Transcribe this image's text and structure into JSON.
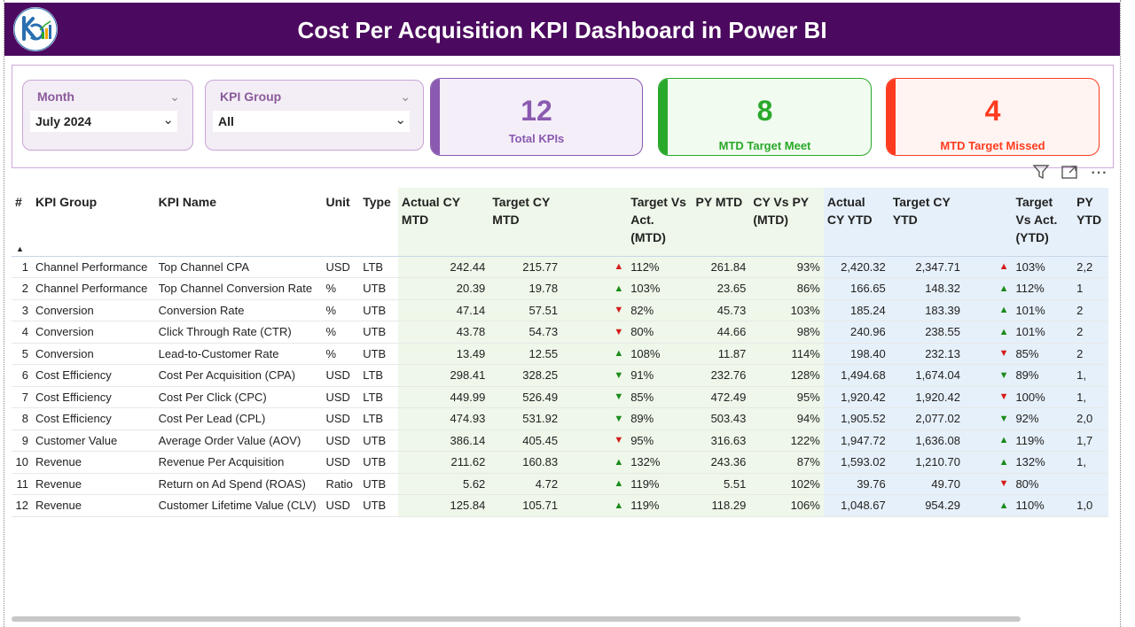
{
  "header": {
    "title": "Cost Per Acquisition KPI Dashboard in Power BI"
  },
  "colors": {
    "header_bg": "#4b0a5f",
    "accent_purple": "#8a5ab0",
    "accent_green": "#2aa82a",
    "accent_red": "#ff3b1f"
  },
  "slicers": {
    "month": {
      "label": "Month",
      "value": "July 2024"
    },
    "kpi_group": {
      "label": "KPI Group",
      "value": "All"
    }
  },
  "cards": {
    "total": {
      "value": "12",
      "label": "Total KPIs"
    },
    "meet": {
      "value": "8",
      "label": "MTD Target Meet"
    },
    "missed": {
      "value": "4",
      "label": "MTD Target Missed"
    }
  },
  "icons": {
    "filter": "filter-icon",
    "focus": "focus-mode-icon",
    "more": "more-options-icon"
  },
  "table": {
    "headers": [
      "#",
      "KPI Group",
      "KPI Name",
      "Unit",
      "Type",
      "Actual CY MTD",
      "Target CY MTD",
      "",
      "Target Vs Act. (MTD)",
      "PY MTD",
      "CY Vs PY (MTD)",
      "Actual CY YTD",
      "Target CY YTD",
      "",
      "Target Vs Act. (YTD)",
      "PY YTD"
    ],
    "rows": [
      {
        "n": "1",
        "group": "Channel Performance",
        "name": "Top Channel CPA",
        "unit": "USD",
        "type": "LTB",
        "act_mtd": "242.44",
        "tgt_mtd": "215.77",
        "ind_mtd": "up-red",
        "tva_mtd": "112%",
        "py_mtd": "261.84",
        "cvp_mtd": "93%",
        "act_ytd": "2,420.32",
        "tgt_ytd": "2,347.71",
        "ind_ytd": "up-red",
        "tva_ytd": "103%",
        "py_ytd": "2,2"
      },
      {
        "n": "2",
        "group": "Channel Performance",
        "name": "Top Channel Conversion Rate",
        "unit": "%",
        "type": "UTB",
        "act_mtd": "20.39",
        "tgt_mtd": "19.78",
        "ind_mtd": "up-green",
        "tva_mtd": "103%",
        "py_mtd": "23.65",
        "cvp_mtd": "86%",
        "act_ytd": "166.65",
        "tgt_ytd": "148.32",
        "ind_ytd": "up-green",
        "tva_ytd": "112%",
        "py_ytd": "1"
      },
      {
        "n": "3",
        "group": "Conversion",
        "name": "Conversion Rate",
        "unit": "%",
        "type": "UTB",
        "act_mtd": "47.14",
        "tgt_mtd": "57.51",
        "ind_mtd": "down-red",
        "tva_mtd": "82%",
        "py_mtd": "45.73",
        "cvp_mtd": "103%",
        "act_ytd": "185.24",
        "tgt_ytd": "183.39",
        "ind_ytd": "up-green",
        "tva_ytd": "101%",
        "py_ytd": "2"
      },
      {
        "n": "4",
        "group": "Conversion",
        "name": "Click Through Rate (CTR)",
        "unit": "%",
        "type": "UTB",
        "act_mtd": "43.78",
        "tgt_mtd": "54.73",
        "ind_mtd": "down-red",
        "tva_mtd": "80%",
        "py_mtd": "44.66",
        "cvp_mtd": "98%",
        "act_ytd": "240.96",
        "tgt_ytd": "238.55",
        "ind_ytd": "up-green",
        "tva_ytd": "101%",
        "py_ytd": "2"
      },
      {
        "n": "5",
        "group": "Conversion",
        "name": "Lead-to-Customer Rate",
        "unit": "%",
        "type": "UTB",
        "act_mtd": "13.49",
        "tgt_mtd": "12.55",
        "ind_mtd": "up-green",
        "tva_mtd": "108%",
        "py_mtd": "11.87",
        "cvp_mtd": "114%",
        "act_ytd": "198.40",
        "tgt_ytd": "232.13",
        "ind_ytd": "down-red",
        "tva_ytd": "85%",
        "py_ytd": "2"
      },
      {
        "n": "6",
        "group": "Cost Efficiency",
        "name": "Cost Per Acquisition (CPA)",
        "unit": "USD",
        "type": "LTB",
        "act_mtd": "298.41",
        "tgt_mtd": "328.25",
        "ind_mtd": "down-green",
        "tva_mtd": "91%",
        "py_mtd": "232.76",
        "cvp_mtd": "128%",
        "act_ytd": "1,494.68",
        "tgt_ytd": "1,674.04",
        "ind_ytd": "down-green",
        "tva_ytd": "89%",
        "py_ytd": "1,"
      },
      {
        "n": "7",
        "group": "Cost Efficiency",
        "name": "Cost Per Click (CPC)",
        "unit": "USD",
        "type": "LTB",
        "act_mtd": "449.99",
        "tgt_mtd": "526.49",
        "ind_mtd": "down-green",
        "tva_mtd": "85%",
        "py_mtd": "472.49",
        "cvp_mtd": "95%",
        "act_ytd": "1,920.42",
        "tgt_ytd": "1,920.42",
        "ind_ytd": "down-red",
        "tva_ytd": "100%",
        "py_ytd": "1,"
      },
      {
        "n": "8",
        "group": "Cost Efficiency",
        "name": "Cost Per Lead (CPL)",
        "unit": "USD",
        "type": "LTB",
        "act_mtd": "474.93",
        "tgt_mtd": "531.92",
        "ind_mtd": "down-green",
        "tva_mtd": "89%",
        "py_mtd": "503.43",
        "cvp_mtd": "94%",
        "act_ytd": "1,905.52",
        "tgt_ytd": "2,077.02",
        "ind_ytd": "down-green",
        "tva_ytd": "92%",
        "py_ytd": "2,0"
      },
      {
        "n": "9",
        "group": "Customer Value",
        "name": "Average Order Value (AOV)",
        "unit": "USD",
        "type": "UTB",
        "act_mtd": "386.14",
        "tgt_mtd": "405.45",
        "ind_mtd": "down-red",
        "tva_mtd": "95%",
        "py_mtd": "316.63",
        "cvp_mtd": "122%",
        "act_ytd": "1,947.72",
        "tgt_ytd": "1,636.08",
        "ind_ytd": "up-green",
        "tva_ytd": "119%",
        "py_ytd": "1,7"
      },
      {
        "n": "10",
        "group": "Revenue",
        "name": "Revenue Per Acquisition",
        "unit": "USD",
        "type": "UTB",
        "act_mtd": "211.62",
        "tgt_mtd": "160.83",
        "ind_mtd": "up-green",
        "tva_mtd": "132%",
        "py_mtd": "243.36",
        "cvp_mtd": "87%",
        "act_ytd": "1,593.02",
        "tgt_ytd": "1,210.70",
        "ind_ytd": "up-green",
        "tva_ytd": "132%",
        "py_ytd": "1,"
      },
      {
        "n": "11",
        "group": "Revenue",
        "name": "Return on Ad Spend (ROAS)",
        "unit": "Ratio",
        "type": "UTB",
        "act_mtd": "5.62",
        "tgt_mtd": "4.72",
        "ind_mtd": "up-green",
        "tva_mtd": "119%",
        "py_mtd": "5.51",
        "cvp_mtd": "102%",
        "act_ytd": "39.76",
        "tgt_ytd": "49.70",
        "ind_ytd": "down-red",
        "tva_ytd": "80%",
        "py_ytd": ""
      },
      {
        "n": "12",
        "group": "Revenue",
        "name": "Customer Lifetime Value (CLV)",
        "unit": "USD",
        "type": "UTB",
        "act_mtd": "125.84",
        "tgt_mtd": "105.71",
        "ind_mtd": "up-green",
        "tva_mtd": "119%",
        "py_mtd": "118.29",
        "cvp_mtd": "106%",
        "act_ytd": "1,048.67",
        "tgt_ytd": "954.29",
        "ind_ytd": "up-green",
        "tva_ytd": "110%",
        "py_ytd": "1,0"
      }
    ]
  }
}
